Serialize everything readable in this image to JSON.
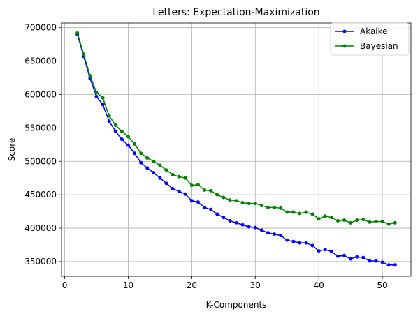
{
  "chart_data": {
    "type": "line",
    "title": "Letters: Expectation-Maximization",
    "xlabel": "K-Components",
    "ylabel": "Score",
    "xlim": [
      -0.5,
      54.5
    ],
    "ylim": [
      328000,
      707000
    ],
    "xticks": [
      0,
      10,
      20,
      30,
      40,
      50
    ],
    "yticks": [
      350000,
      400000,
      450000,
      500000,
      550000,
      600000,
      650000,
      700000
    ],
    "xtick_labels": [
      "0",
      "10",
      "20",
      "30",
      "40",
      "50"
    ],
    "ytick_labels": [
      "350000",
      "400000",
      "450000",
      "500000",
      "550000",
      "600000",
      "650000",
      "700000"
    ],
    "grid": true,
    "legend_position": "top-right",
    "x": [
      2,
      3,
      4,
      5,
      6,
      7,
      8,
      9,
      10,
      11,
      12,
      13,
      14,
      15,
      16,
      17,
      18,
      19,
      20,
      21,
      22,
      23,
      24,
      25,
      26,
      27,
      28,
      29,
      30,
      31,
      32,
      33,
      34,
      35,
      36,
      37,
      38,
      39,
      40,
      41,
      42,
      43,
      44,
      45,
      46,
      47,
      48,
      49,
      50,
      51,
      52
    ],
    "series": [
      {
        "name": "Akaike",
        "color": "#0000ff",
        "values": [
          690000,
          657000,
          624000,
          597000,
          585000,
          560000,
          545000,
          533000,
          524000,
          512000,
          498000,
          490000,
          483000,
          475000,
          467000,
          459000,
          455000,
          451000,
          441000,
          439000,
          431000,
          428000,
          421000,
          416000,
          411000,
          408000,
          405000,
          402000,
          401000,
          397000,
          393000,
          391000,
          389000,
          382000,
          380000,
          378000,
          378000,
          374000,
          366000,
          368000,
          365000,
          358000,
          359000,
          354000,
          357000,
          356000,
          351000,
          351000,
          349000,
          345000,
          345000
        ]
      },
      {
        "name": "Bayesian",
        "color": "#008000",
        "values": [
          692000,
          660000,
          628000,
          603000,
          595000,
          568000,
          554000,
          545000,
          537000,
          526000,
          512000,
          505000,
          500000,
          494000,
          487000,
          480000,
          477000,
          475000,
          464000,
          465000,
          457000,
          456000,
          450000,
          446000,
          442000,
          441000,
          438000,
          437000,
          437000,
          434000,
          431000,
          431000,
          430000,
          424000,
          424000,
          422000,
          424000,
          421000,
          414000,
          418000,
          416000,
          411000,
          412000,
          408000,
          412000,
          413000,
          409000,
          410000,
          410000,
          406000,
          408000
        ]
      }
    ]
  }
}
